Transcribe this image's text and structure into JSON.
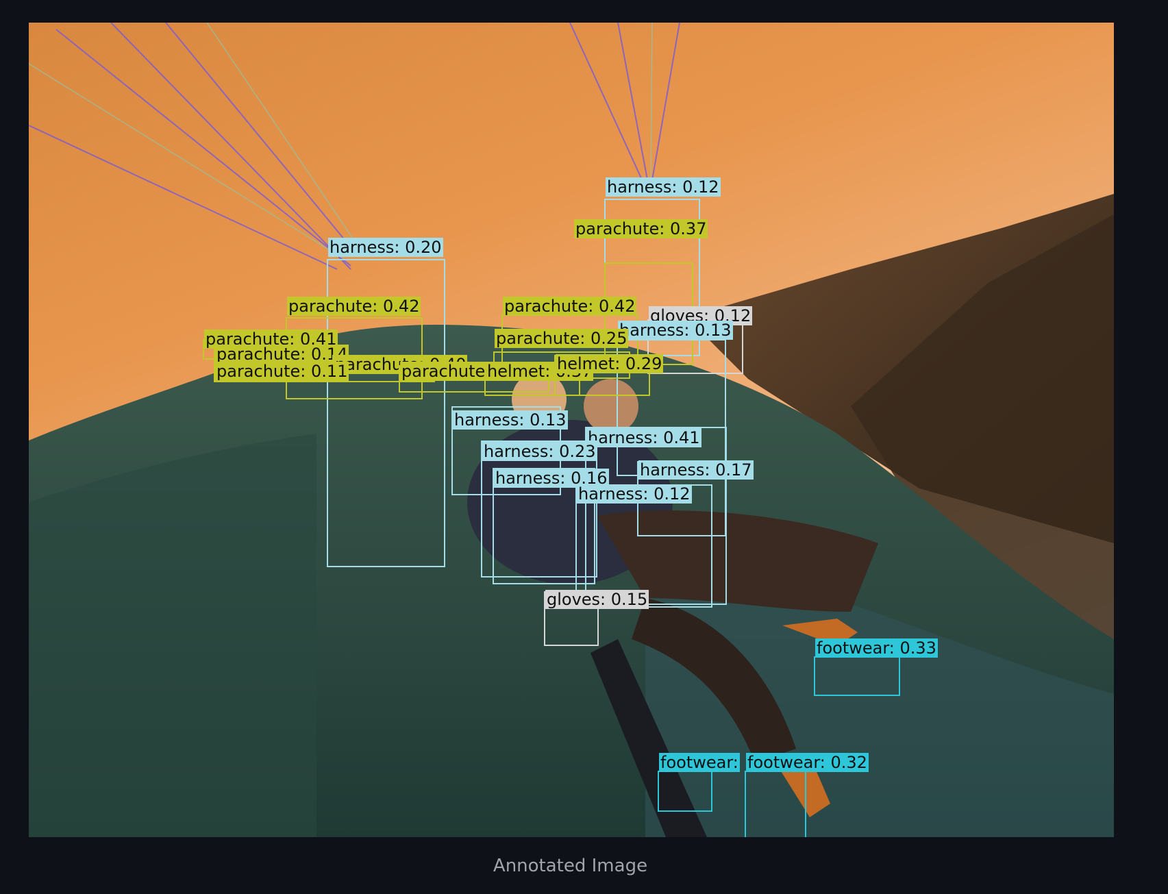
{
  "caption": "Annotated Image",
  "colors": {
    "background": "#0e1117",
    "harness": "#a4dde8",
    "parachute": "#c2c72a",
    "helmet": "#c2c72a",
    "gloves": "#d6d6d6",
    "footwear": "#2ec7d9"
  },
  "detections": [
    {
      "label": "harness: 0.12",
      "cls": "harness"
    },
    {
      "label": "parachute: 0.37",
      "cls": "parachute"
    },
    {
      "label": "harness: 0.20",
      "cls": "harness"
    },
    {
      "label": "parachute: 0.42",
      "cls": "parachute"
    },
    {
      "label": "parachute: 0.42",
      "cls": "parachute"
    },
    {
      "label": "gloves: 0.12",
      "cls": "gloves"
    },
    {
      "label": "harness: 0.13",
      "cls": "harness"
    },
    {
      "label": "parachute: 0.41",
      "cls": "parachute"
    },
    {
      "label": "parachute: 0.14",
      "cls": "parachute"
    },
    {
      "label": "parachute: 0.25",
      "cls": "parachute"
    },
    {
      "label": "parachute: 0.40",
      "cls": "parachute"
    },
    {
      "label": "parachute: 0.11",
      "cls": "parachute"
    },
    {
      "label": "parachute",
      "cls": "parachute"
    },
    {
      "label": "helmet: 0.37",
      "cls": "helmet"
    },
    {
      "label": "helmet: 0.29",
      "cls": "helmet"
    },
    {
      "label": "harness: 0.13",
      "cls": "harness"
    },
    {
      "label": "harness: 0.41",
      "cls": "harness"
    },
    {
      "label": "harness: 0.23",
      "cls": "harness"
    },
    {
      "label": "harness: 0.17",
      "cls": "harness"
    },
    {
      "label": "harness: 0.16",
      "cls": "harness"
    },
    {
      "label": "harness: 0.12",
      "cls": "harness"
    },
    {
      "label": "gloves: 0.15",
      "cls": "gloves"
    },
    {
      "label": "footwear: 0.33",
      "cls": "footwear"
    },
    {
      "label": "footwear:",
      "cls": "footwear"
    },
    {
      "label": "footwear: 0.32",
      "cls": "footwear"
    }
  ]
}
